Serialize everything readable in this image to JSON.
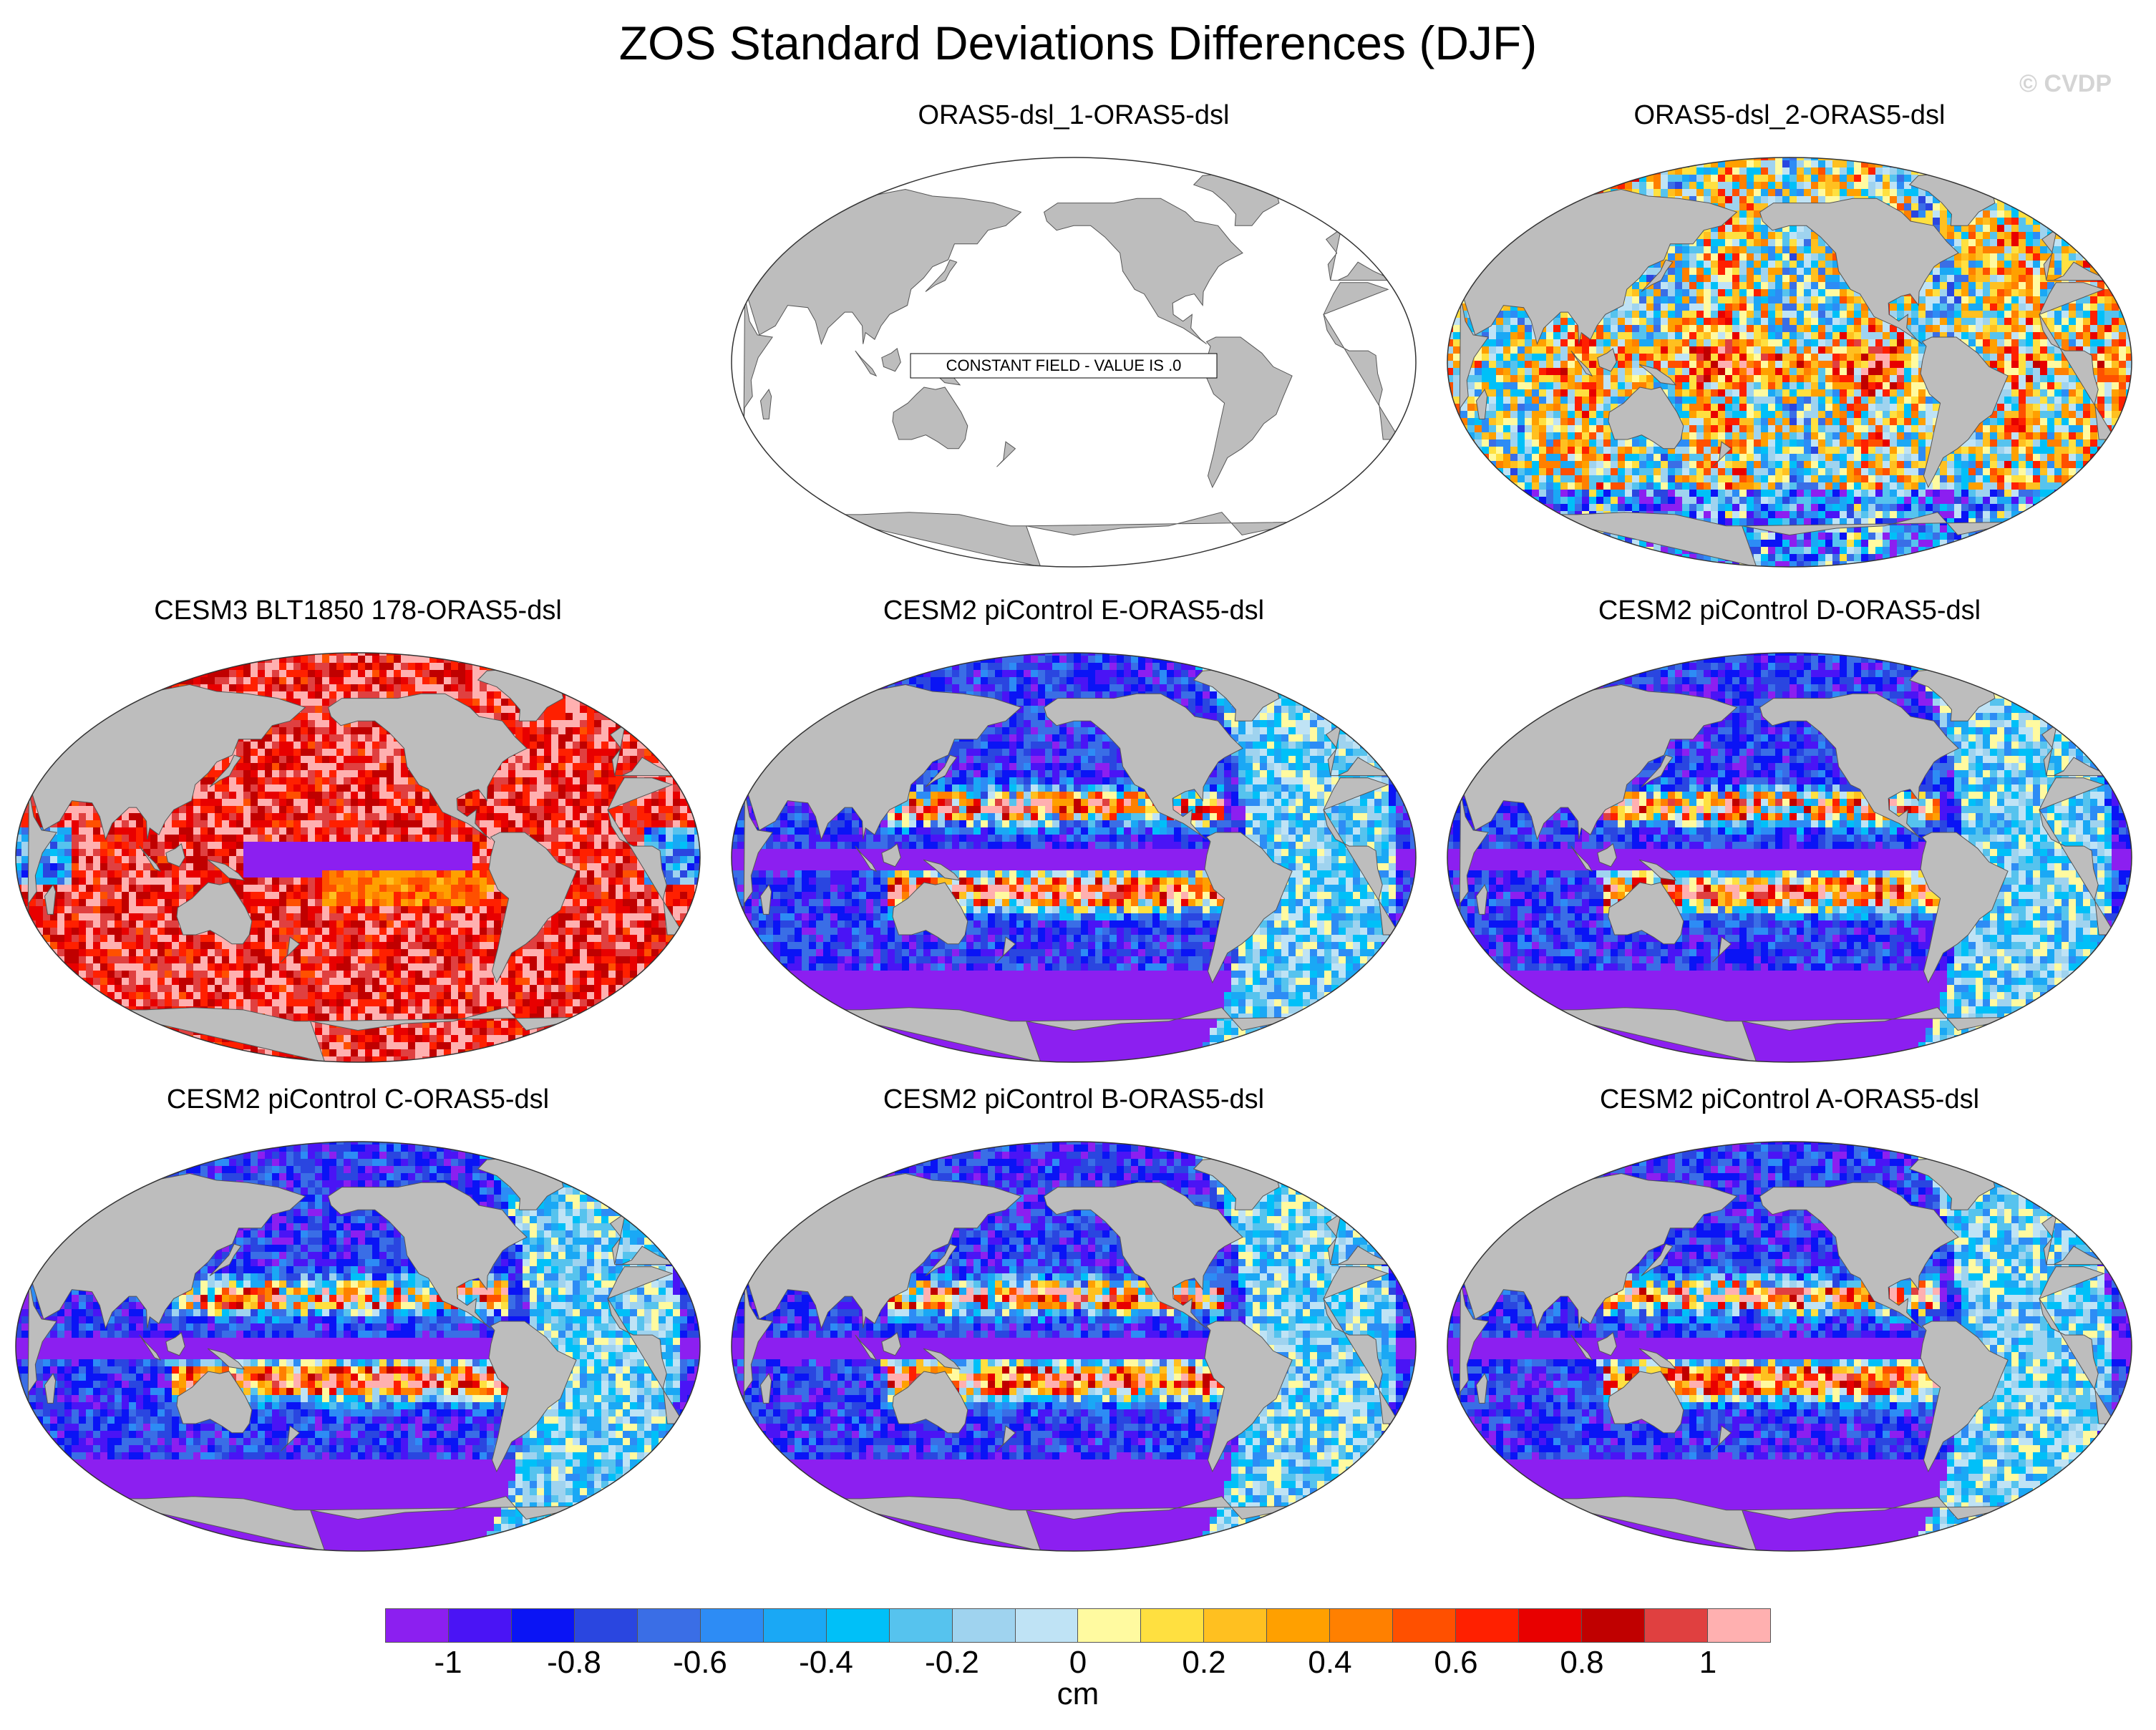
{
  "title": "ZOS Standard Deviations Differences (DJF)",
  "credit": "© CVDP",
  "panels": [
    {
      "title": "ORAS5-dsl_1-ORAS5-dsl",
      "pattern": "constant",
      "annotation": "CONSTANT FIELD - VALUE IS .0"
    },
    {
      "title": "ORAS5-dsl_2-ORAS5-dsl",
      "pattern": "mixed"
    },
    {
      "title": "CESM3 BLT1850 178-ORAS5-dsl",
      "pattern": "positive"
    },
    {
      "title": "CESM2 piControl E-ORAS5-dsl",
      "pattern": "negative"
    },
    {
      "title": "CESM2 piControl D-ORAS5-dsl",
      "pattern": "negative"
    },
    {
      "title": "CESM2 piControl C-ORAS5-dsl",
      "pattern": "negative"
    },
    {
      "title": "CESM2 piControl B-ORAS5-dsl",
      "pattern": "negative"
    },
    {
      "title": "CESM2 piControl A-ORAS5-dsl",
      "pattern": "negative"
    }
  ],
  "colorbar": {
    "unit": "cm",
    "labels": [
      "-1",
      "-0.8",
      "-0.6",
      "-0.4",
      "-0.2",
      "0",
      "0.2",
      "0.4",
      "0.6",
      "0.8",
      "1"
    ],
    "colors": [
      "#8c1ff0",
      "#4a14f5",
      "#0a14f5",
      "#2a46e0",
      "#3a6ee6",
      "#2d8cf5",
      "#1aa8f5",
      "#00c0f8",
      "#56c3ee",
      "#9fd3ef",
      "#bfe3f5",
      "#fffaa0",
      "#ffe040",
      "#ffc020",
      "#ffa000",
      "#ff8000",
      "#ff5000",
      "#ff2000",
      "#e80000",
      "#c00000",
      "#e04040",
      "#ffb0b0"
    ]
  }
}
